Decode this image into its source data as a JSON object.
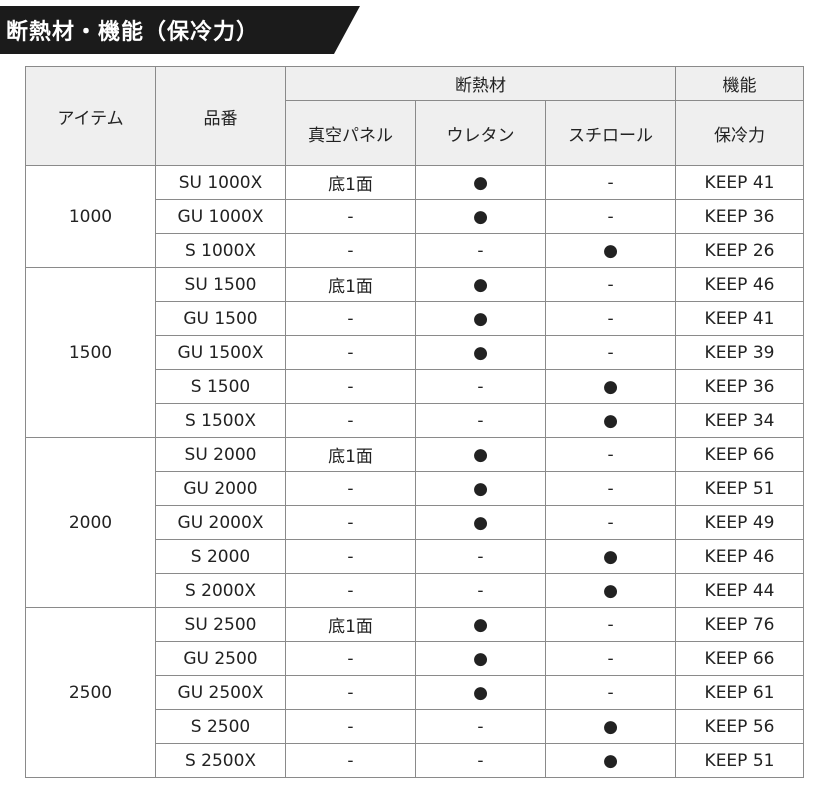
{
  "banner_title": "断熱材・機能（保冷力）",
  "headers": {
    "item": "アイテム",
    "model": "品番",
    "insulation": "断熱材",
    "function": "機能",
    "vacuum_panel": "真空パネル",
    "urethane": "ウレタン",
    "styrofoam": "スチロール",
    "cold_retention": "保冷力"
  },
  "groups": [
    {
      "item": "1000",
      "rows": [
        {
          "model": "SU 1000X",
          "vacuum": "底1面",
          "urethane": "●",
          "styro": "-",
          "keep": "KEEP 41"
        },
        {
          "model": "GU 1000X",
          "vacuum": "-",
          "urethane": "●",
          "styro": "-",
          "keep": "KEEP 36"
        },
        {
          "model": "S 1000X",
          "vacuum": "-",
          "urethane": "-",
          "styro": "●",
          "keep": "KEEP 26"
        }
      ]
    },
    {
      "item": "1500",
      "rows": [
        {
          "model": "SU 1500",
          "vacuum": "底1面",
          "urethane": "●",
          "styro": "-",
          "keep": "KEEP 46"
        },
        {
          "model": "GU 1500",
          "vacuum": "-",
          "urethane": "●",
          "styro": "-",
          "keep": "KEEP 41"
        },
        {
          "model": "GU 1500X",
          "vacuum": "-",
          "urethane": "●",
          "styro": "-",
          "keep": "KEEP 39"
        },
        {
          "model": "S 1500",
          "vacuum": "-",
          "urethane": "-",
          "styro": "●",
          "keep": "KEEP 36"
        },
        {
          "model": "S 1500X",
          "vacuum": "-",
          "urethane": "-",
          "styro": "●",
          "keep": "KEEP 34"
        }
      ]
    },
    {
      "item": "2000",
      "rows": [
        {
          "model": "SU 2000",
          "vacuum": "底1面",
          "urethane": "●",
          "styro": "-",
          "keep": "KEEP 66"
        },
        {
          "model": "GU 2000",
          "vacuum": "-",
          "urethane": "●",
          "styro": "-",
          "keep": "KEEP 51"
        },
        {
          "model": "GU 2000X",
          "vacuum": "-",
          "urethane": "●",
          "styro": "-",
          "keep": "KEEP 49"
        },
        {
          "model": "S 2000",
          "vacuum": "-",
          "urethane": "-",
          "styro": "●",
          "keep": "KEEP 46"
        },
        {
          "model": "S 2000X",
          "vacuum": "-",
          "urethane": "-",
          "styro": "●",
          "keep": "KEEP 44"
        }
      ]
    },
    {
      "item": "2500",
      "rows": [
        {
          "model": "SU 2500",
          "vacuum": "底1面",
          "urethane": "●",
          "styro": "-",
          "keep": "KEEP 76"
        },
        {
          "model": "GU 2500",
          "vacuum": "-",
          "urethane": "●",
          "styro": "-",
          "keep": "KEEP 66"
        },
        {
          "model": "GU 2500X",
          "vacuum": "-",
          "urethane": "●",
          "styro": "-",
          "keep": "KEEP 61"
        },
        {
          "model": "S 2500",
          "vacuum": "-",
          "urethane": "-",
          "styro": "●",
          "keep": "KEEP 56"
        },
        {
          "model": "S 2500X",
          "vacuum": "-",
          "urethane": "-",
          "styro": "●",
          "keep": "KEEP 51"
        }
      ]
    }
  ]
}
